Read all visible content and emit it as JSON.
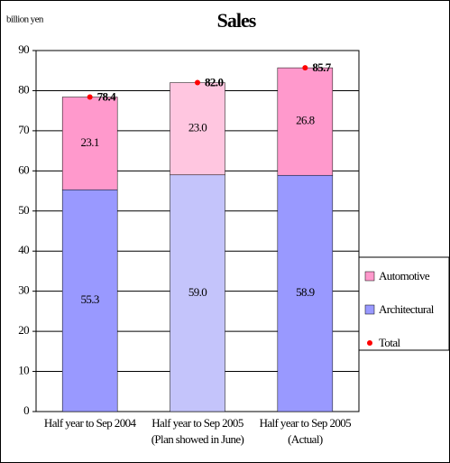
{
  "chart_data": {
    "type": "stacked_bar",
    "title": "Sales",
    "y_label": "billion yen",
    "categories": [
      [
        "Half year to Sep 2004"
      ],
      [
        "Half year to Sep 2005",
        "(Plan showed in June)"
      ],
      [
        "Half year to Sep 2005",
        "(Actual)"
      ]
    ],
    "series": [
      {
        "name": "Architectural",
        "color": "#9999ff",
        "colors": [
          "#9999ff",
          "#c4c4fb",
          "#9999ff"
        ],
        "values": [
          55.3,
          59.0,
          58.9
        ],
        "value_labels": [
          "55.3",
          "59.0",
          "58.9"
        ]
      },
      {
        "name": "Automotive",
        "color": "#ff99cc",
        "colors": [
          "#ff99cc",
          "#ffc6e0",
          "#ff99cc"
        ],
        "values": [
          23.1,
          23.0,
          26.8
        ],
        "value_labels": [
          "23.1",
          "23.0",
          "26.8"
        ]
      },
      {
        "name": "Total",
        "color": "#ff0000",
        "type": "dot",
        "values": [
          78.4,
          82.0,
          85.7
        ],
        "value_labels": [
          "78.4",
          "82.0",
          "85.7"
        ]
      }
    ],
    "legend_order": [
      1,
      0,
      2
    ],
    "ylim": [
      0,
      90
    ],
    "yticks": [
      0,
      10,
      20,
      30,
      40,
      50,
      60,
      70,
      80,
      90
    ],
    "grid": true,
    "legend": "right"
  }
}
